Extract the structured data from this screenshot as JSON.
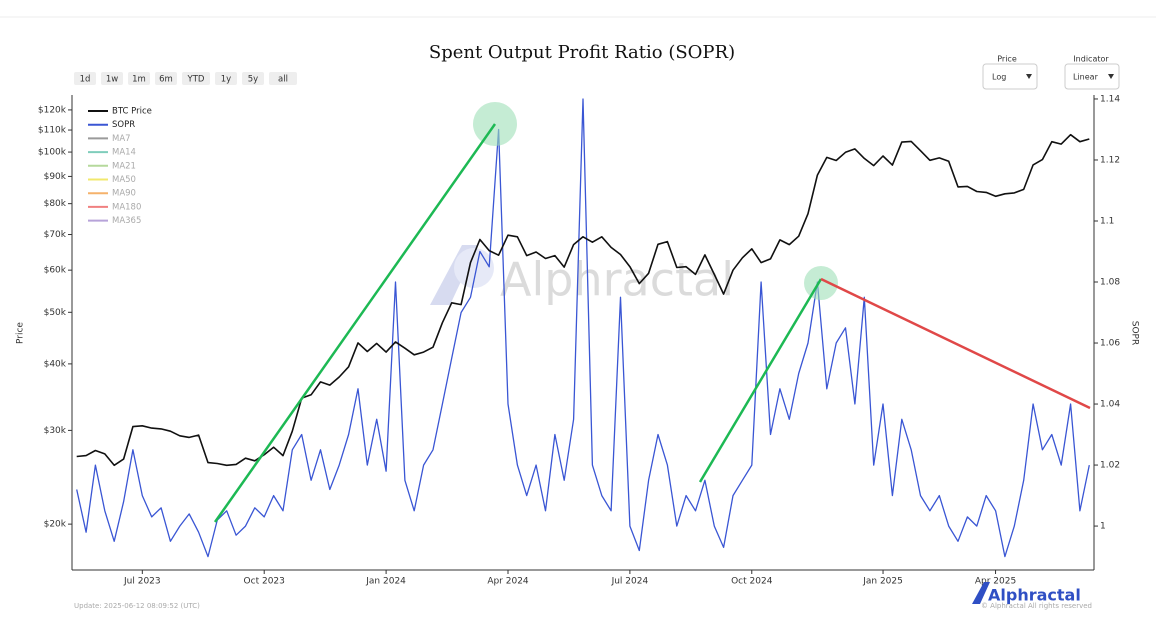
{
  "chart_data": {
    "type": "line",
    "title": "Spent Output Profit Ratio (SOPR)",
    "ranges": [
      "1d",
      "1w",
      "1m",
      "6m",
      "YTD",
      "1y",
      "5y",
      "all"
    ],
    "selectors": [
      {
        "label": "Price",
        "value": "Log"
      },
      {
        "label": "Indicator",
        "value": "Linear"
      }
    ],
    "ylabel": "Price",
    "y2label": "SOPR",
    "ylog": true,
    "grid": false,
    "legend": "top-left",
    "watermark": "Alphractal",
    "update": "Update: 2025-06-12 08:09:52 (UTC)",
    "copyright": "© Alphractal All rights reserved",
    "inactive_legend": [
      {
        "name": "MA7",
        "color": "#9a9a9a"
      },
      {
        "name": "MA14",
        "color": "#7fcdbb"
      },
      {
        "name": "MA21",
        "color": "#b5d99c"
      },
      {
        "name": "MA50",
        "color": "#f2e86d"
      },
      {
        "name": "MA90",
        "color": "#f5b26b"
      },
      {
        "name": "MA180",
        "color": "#f08080"
      },
      {
        "name": "MA365",
        "color": "#b7a3d9"
      }
    ],
    "categories": [
      null,
      null,
      null,
      null,
      null,
      null,
      null,
      "Jul 2023",
      null,
      null,
      null,
      null,
      null,
      null,
      null,
      null,
      null,
      null,
      null,
      null,
      "Oct 2023",
      null,
      null,
      null,
      null,
      null,
      null,
      null,
      null,
      null,
      null,
      null,
      null,
      "Jan 2024",
      null,
      null,
      null,
      null,
      null,
      null,
      null,
      null,
      null,
      null,
      null,
      null,
      "Apr 2024",
      null,
      null,
      null,
      null,
      null,
      null,
      null,
      null,
      null,
      null,
      null,
      null,
      "Jul 2024",
      null,
      null,
      null,
      null,
      null,
      null,
      null,
      null,
      null,
      null,
      null,
      null,
      "Oct 2024",
      null,
      null,
      null,
      null,
      null,
      null,
      null,
      null,
      null,
      null,
      null,
      null,
      null,
      "Jan 2025",
      null,
      null,
      null,
      null,
      null,
      null,
      null,
      null,
      null,
      null,
      null,
      "Apr 2025",
      null,
      null,
      null,
      null,
      null,
      null,
      null,
      null,
      null,
      null
    ],
    "ylim": [
      16400,
      128000
    ],
    "yticks": [
      {
        "value": 20000,
        "label": "$20k"
      },
      {
        "value": 30000,
        "label": "$30k"
      },
      {
        "value": 40000,
        "label": "$40k"
      },
      {
        "value": 50000,
        "label": "$50k"
      },
      {
        "value": 60000,
        "label": "$60k"
      },
      {
        "value": 70000,
        "label": "$70k"
      },
      {
        "value": 80000,
        "label": "$80k"
      },
      {
        "value": 90000,
        "label": "$90k"
      },
      {
        "value": 100000,
        "label": "$100k"
      },
      {
        "value": 110000,
        "label": "$110k"
      },
      {
        "value": 120000,
        "label": "$120k"
      }
    ],
    "y2lim": [
      0.9856,
      1.1413
    ],
    "y2ticks": [
      1,
      1.02,
      1.04,
      1.06,
      1.08,
      1.1,
      1.12,
      1.14
    ],
    "series": [
      {
        "name": "BTC Price",
        "color": "#111111",
        "values": [
          26800,
          26900,
          27500,
          27100,
          25800,
          26500,
          30500,
          30600,
          30300,
          30200,
          29900,
          29300,
          29100,
          29400,
          26100,
          26000,
          25800,
          25900,
          26600,
          26300,
          27000,
          27900,
          26900,
          29900,
          34500,
          35000,
          37000,
          36500,
          37800,
          39500,
          43800,
          42200,
          43700,
          42100,
          44000,
          42800,
          41600,
          42100,
          43000,
          47800,
          52100,
          51700,
          62000,
          68500,
          65300,
          64000,
          69800,
          69300,
          63900,
          64900,
          63100,
          63900,
          60800,
          67000,
          69300,
          67700,
          69300,
          66200,
          64200,
          60900,
          56600,
          59200,
          67100,
          67900,
          60700,
          60900,
          58900,
          64100,
          58900,
          54100,
          60000,
          63300,
          65800,
          62000,
          63000,
          68400,
          67000,
          69500,
          76600,
          90500,
          97700,
          96400,
          99900,
          101400,
          97300,
          94300,
          98300,
          94500,
          104400,
          104700,
          100600,
          96500,
          97500,
          96100,
          86000,
          86200,
          84300,
          84000,
          82600,
          83500,
          83800,
          85100,
          94600,
          96800,
          104600,
          103500,
          107800,
          104600,
          105800
        ]
      },
      {
        "name": "SOPR",
        "color": "#3a56d4",
        "axis": "y2",
        "values": [
          1.012,
          0.998,
          1.02,
          1.005,
          0.995,
          1.008,
          1.025,
          1.01,
          1.003,
          1.006,
          0.995,
          1.0,
          1.004,
          0.998,
          0.99,
          1.002,
          1.005,
          0.997,
          1.0,
          1.006,
          1.003,
          1.01,
          1.005,
          1.025,
          1.03,
          1.015,
          1.025,
          1.012,
          1.02,
          1.03,
          1.045,
          1.02,
          1.035,
          1.018,
          1.08,
          1.015,
          1.005,
          1.02,
          1.025,
          1.04,
          1.055,
          1.07,
          1.075,
          1.09,
          1.085,
          1.13,
          1.04,
          1.02,
          1.01,
          1.02,
          1.005,
          1.03,
          1.015,
          1.035,
          1.14,
          1.02,
          1.01,
          1.005,
          1.075,
          1.0,
          0.992,
          1.015,
          1.03,
          1.02,
          1.0,
          1.01,
          1.005,
          1.015,
          1.0,
          0.993,
          1.01,
          1.015,
          1.02,
          1.08,
          1.03,
          1.045,
          1.035,
          1.05,
          1.06,
          1.08,
          1.045,
          1.06,
          1.065,
          1.04,
          1.075,
          1.02,
          1.04,
          1.01,
          1.035,
          1.025,
          1.01,
          1.005,
          1.01,
          1.0,
          0.995,
          1.003,
          1.0,
          1.01,
          1.005,
          0.99,
          1.0,
          1.015,
          1.04,
          1.025,
          1.03,
          1.02,
          1.04,
          1.005,
          1.02
        ]
      }
    ]
  }
}
